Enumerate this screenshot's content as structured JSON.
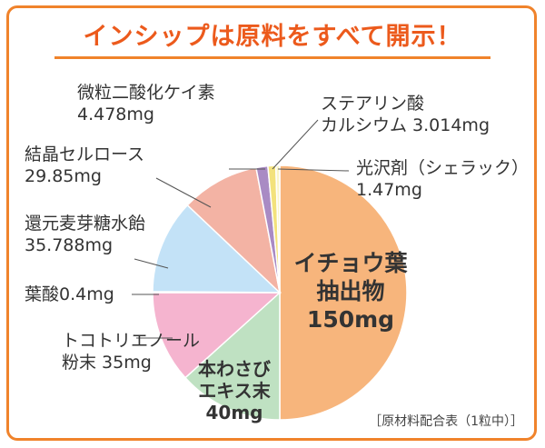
{
  "title": "インシップは原料をすべて開示！",
  "footnote": "［原材料配合表（1粒中）］",
  "chart_data": {
    "type": "pie",
    "unit": "mg",
    "slices": [
      {
        "id": "ginkgo",
        "label_lines": [
          "イチョウ葉",
          "抽出物"
        ],
        "value_text": "150mg",
        "value": 150,
        "color": "#f7b57c"
      },
      {
        "id": "wasabi",
        "label_lines": [
          "本わさび",
          "エキス末"
        ],
        "value_text": "40mg",
        "value": 40,
        "color": "#bfe1c2"
      },
      {
        "id": "tocotrienol",
        "label_lines": [
          "トコトリエノール",
          "粉末"
        ],
        "value_text": "35mg",
        "value": 35,
        "color": "#f5b4cf"
      },
      {
        "id": "folic",
        "label_lines": [
          "葉酸"
        ],
        "value_text": "0.4mg",
        "value": 0.4,
        "color": "#8cc63f"
      },
      {
        "id": "maltose",
        "label_lines": [
          "還元麦芽糖水飴"
        ],
        "value_text": "35.788mg",
        "value": 35.788,
        "color": "#c3e2f7"
      },
      {
        "id": "cellulose",
        "label_lines": [
          "結晶セルロース"
        ],
        "value_text": "29.85mg",
        "value": 29.85,
        "color": "#f3b3a4"
      },
      {
        "id": "silica",
        "label_lines": [
          "微粒二酸化ケイ素"
        ],
        "value_text": "4.478mg",
        "value": 4.478,
        "color": "#a98bc4"
      },
      {
        "id": "stearate",
        "label_lines": [
          "ステアリン酸",
          "カルシウム"
        ],
        "value_text": "3.014mg",
        "value": 3.014,
        "color": "#f3e27c"
      },
      {
        "id": "shellac",
        "label_lines": [
          "光沢剤（シェラック）"
        ],
        "value_text": "1.47mg",
        "value": 1.47,
        "color": "#fbf6c8"
      }
    ]
  }
}
